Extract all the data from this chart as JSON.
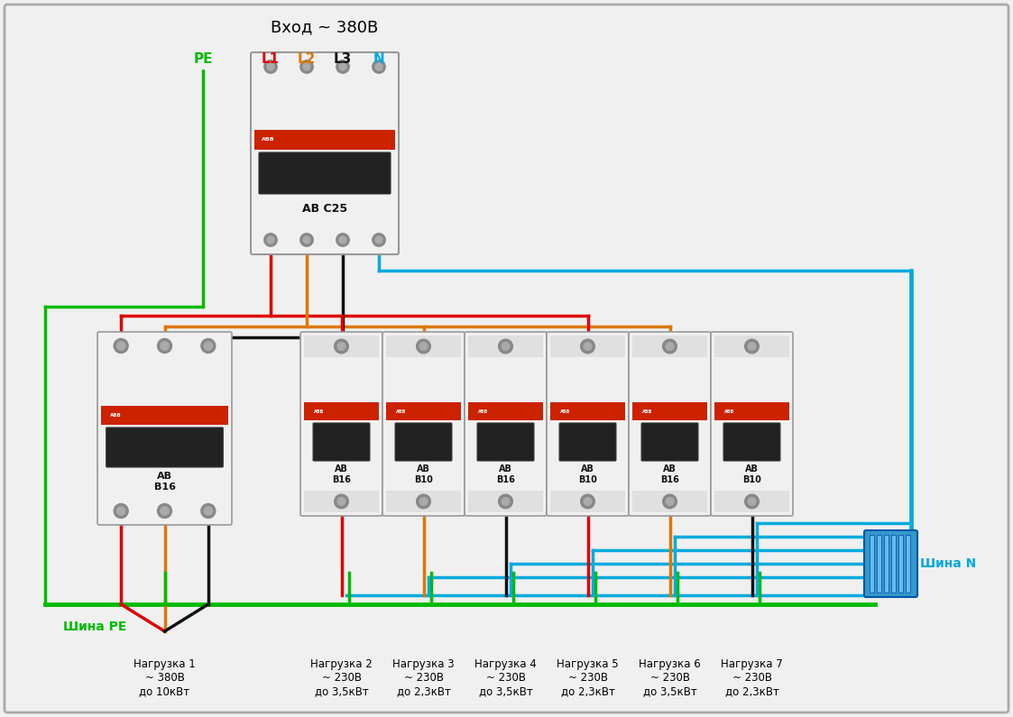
{
  "title": "Вход ~ 380В",
  "bg_color": "#f0f0f0",
  "border_color": "#aaaaaa",
  "wc": {
    "PE": "#00bb00",
    "L1": "#dd0000",
    "L2": "#dd7700",
    "L3": "#111111",
    "N": "#00aadd"
  },
  "lc": {
    "PE": "#00bb00",
    "L1": "#dd0000",
    "L2": "#dd7700",
    "L3": "#111111",
    "N": "#00aadd"
  },
  "loads": [
    {
      "name": "Нагрузка 1\n~ 380В\nдо 10кВт"
    },
    {
      "name": "Нагрузка 2\n~ 230В\nдо 3,5кВт"
    },
    {
      "name": "Нагрузка 3\n~ 230В\nдо 2,3кВт"
    },
    {
      "name": "Нагрузка 4\n~ 230В\nдо 3,5кВт"
    },
    {
      "name": "Нагрузка 5\n~ 230В\nдо 2,3кВт"
    },
    {
      "name": "Нагрузка 6\n~ 230В\nдо 3,5кВт"
    },
    {
      "name": "Нагрузка 7\n~ 230В\nдо 2,3кВт"
    }
  ],
  "sb_labels": [
    "АВ\nВ16",
    "АВ\nВ10",
    "АВ\nВ16",
    "АВ\nВ10",
    "АВ\nВ16",
    "АВ\nВ10"
  ],
  "shina_PE": "Шина РЕ",
  "shina_N": "Шина N",
  "lw": 2.0,
  "lw_thick": 2.5
}
